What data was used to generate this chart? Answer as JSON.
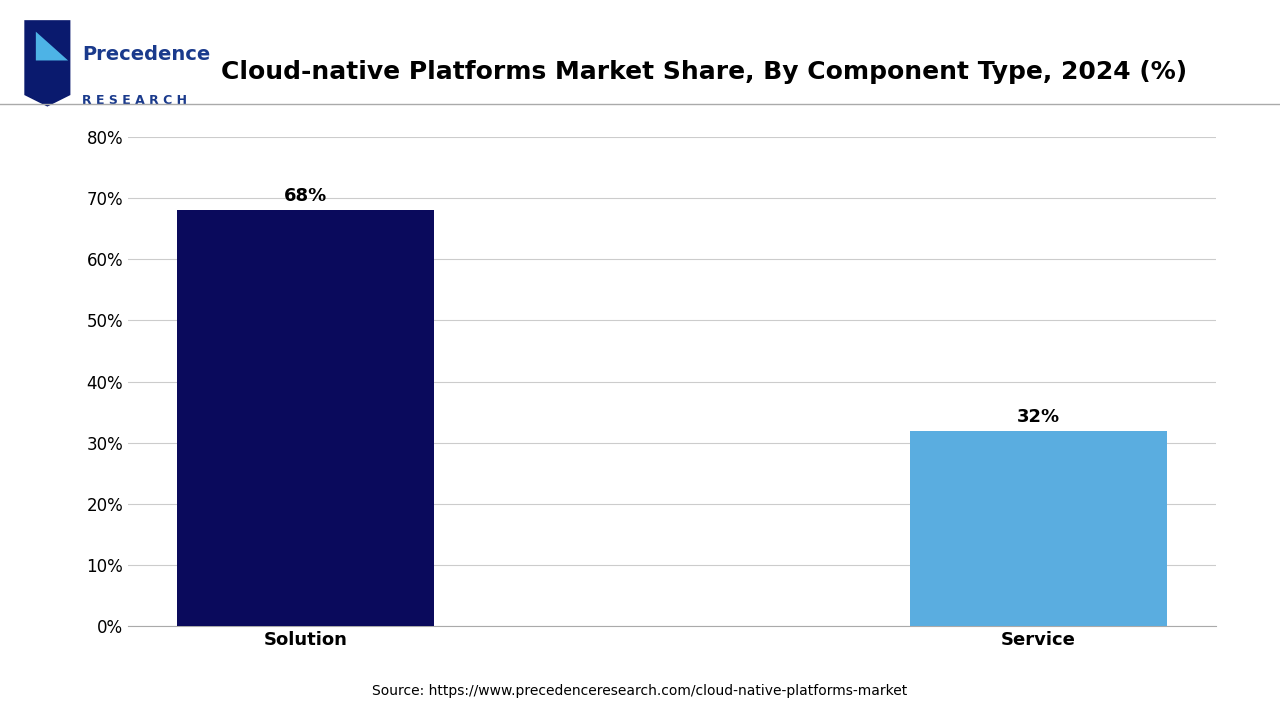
{
  "title": "Cloud-native Platforms Market Share, By Component Type, 2024 (%)",
  "categories": [
    "Solution",
    "Service"
  ],
  "values": [
    68,
    32
  ],
  "bar_colors": [
    "#0a0a5c",
    "#5aade0"
  ],
  "ylim": [
    0,
    80
  ],
  "yticks": [
    0,
    10,
    20,
    30,
    40,
    50,
    60,
    70,
    80
  ],
  "ytick_labels": [
    "0%",
    "10%",
    "20%",
    "30%",
    "40%",
    "50%",
    "60%",
    "70%",
    "80%"
  ],
  "value_labels": [
    "68%",
    "32%"
  ],
  "source_text": "Source: https://www.precedenceresearch.com/cloud-native-platforms-market",
  "title_fontsize": 18,
  "label_fontsize": 13,
  "tick_fontsize": 12,
  "source_fontsize": 10,
  "bar_width": 0.35,
  "background_color": "#ffffff",
  "grid_color": "#cccccc",
  "logo_color": "#1a3a8c"
}
